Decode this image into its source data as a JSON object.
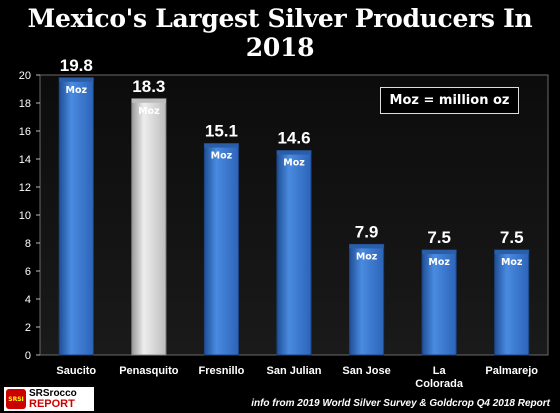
{
  "chart_data": {
    "type": "bar",
    "title": "Mexico's Largest Silver Producers In 2018",
    "categories": [
      "Saucito",
      "Penasquito",
      "Fresnillo",
      "San Julian",
      "San Jose",
      "La Colorada",
      "Palmarejo"
    ],
    "values": [
      19.8,
      18.3,
      15.1,
      14.6,
      7.9,
      7.5,
      7.5
    ],
    "value_labels": [
      "19.8",
      "18.3",
      "15.1",
      "14.6",
      "7.9",
      "7.5",
      "7.5"
    ],
    "bar_unit_label": "Moz",
    "ylim": [
      0,
      20
    ],
    "yticks": [
      0,
      2,
      4,
      6,
      8,
      10,
      12,
      14,
      16,
      18,
      20
    ],
    "grid": false,
    "highlight_index": 1,
    "colors": {
      "bar": "#3a7bd5",
      "highlight": "#d0d0d0",
      "background": "#000000",
      "text": "#ffffff"
    }
  },
  "legend_note": "Moz = million oz",
  "logo": {
    "badge": "SRSI",
    "line1": "SRSrocco",
    "line2": "REPORT"
  },
  "source": "info from 2019 World Silver Survey & Goldcrop Q4 2018 Report"
}
